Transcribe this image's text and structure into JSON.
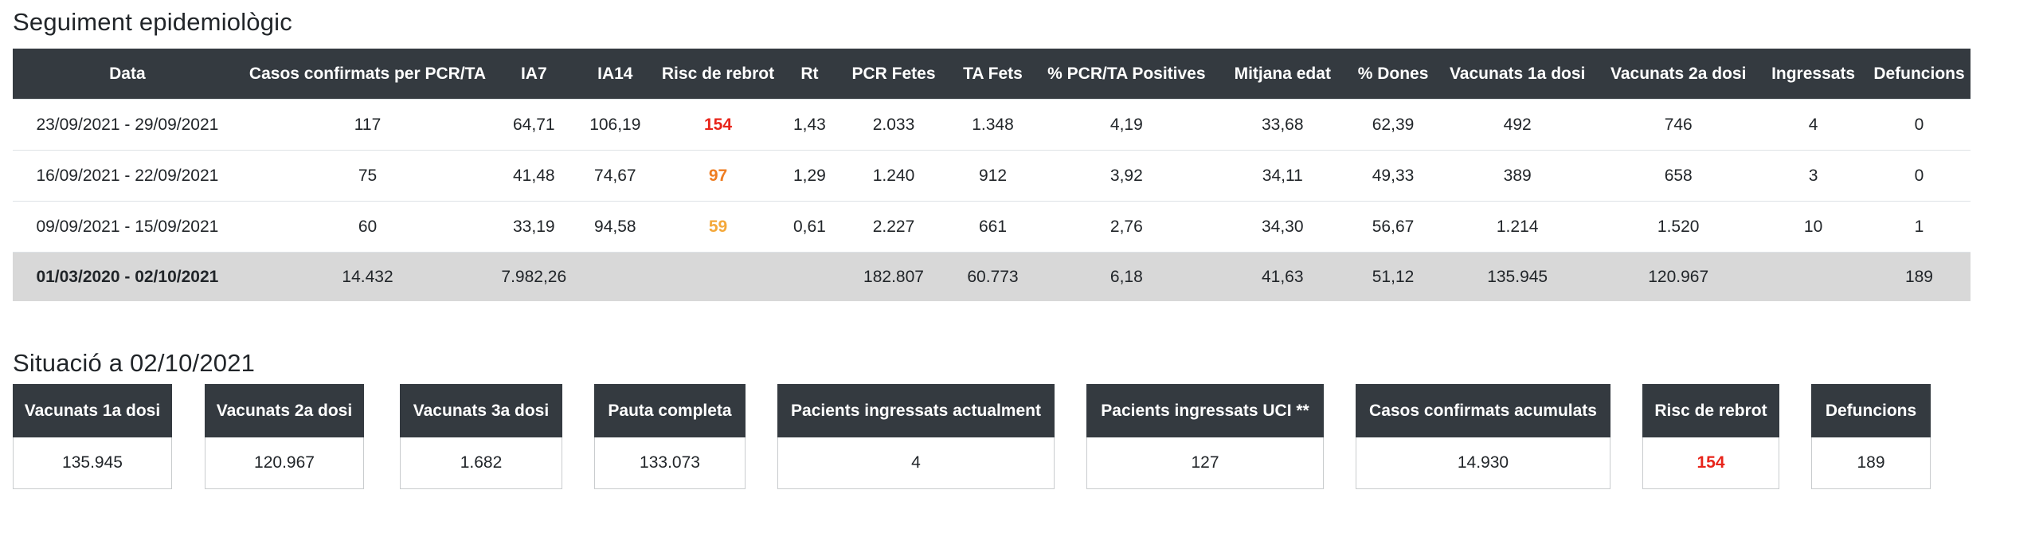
{
  "section1": {
    "title": "Seguiment epidemiològic"
  },
  "table": {
    "headers": [
      "Data",
      "Casos confirmats per PCR/TA",
      "IA7",
      "IA14",
      "Risc de rebrot",
      "Rt",
      "PCR Fetes",
      "TA Fets",
      "% PCR/TA Positives",
      "Mitjana edat",
      "% Dones",
      "Vacunats 1a dosi",
      "Vacunats 2a dosi",
      "Ingressats",
      "Defuncions"
    ],
    "rows": [
      [
        "23/09/2021 - 29/09/2021",
        "117",
        "64,71",
        "106,19",
        "154",
        "1,43",
        "2.033",
        "1.348",
        "4,19",
        "33,68",
        "62,39",
        "492",
        "746",
        "4",
        "0"
      ],
      [
        "16/09/2021 - 22/09/2021",
        "75",
        "41,48",
        "74,67",
        "97",
        "1,29",
        "1.240",
        "912",
        "3,92",
        "34,11",
        "49,33",
        "389",
        "658",
        "3",
        "0"
      ],
      [
        "09/09/2021 - 15/09/2021",
        "60",
        "33,19",
        "94,58",
        "59",
        "0,61",
        "2.227",
        "661",
        "2,76",
        "34,30",
        "56,67",
        "1.214",
        "1.520",
        "10",
        "1"
      ]
    ],
    "risk_colors": [
      "#e8251b",
      "#ef7d22",
      "#f4a83a"
    ],
    "total": [
      "01/03/2020 - 02/10/2021",
      "14.432",
      "7.982,26",
      "",
      "",
      "",
      "182.807",
      "60.773",
      "6,18",
      "41,63",
      "51,12",
      "135.945",
      "120.967",
      "",
      "189"
    ]
  },
  "section2": {
    "title": "Situació a 02/10/2021"
  },
  "cards": [
    {
      "label": "Vacunats 1a dosi",
      "value": "135.945"
    },
    {
      "label": "Vacunats 2a dosi",
      "value": "120.967"
    },
    {
      "label": "Vacunats 3a dosi",
      "value": "1.682"
    },
    {
      "label": "Pauta completa",
      "value": "133.073"
    },
    {
      "label": "Pacients ingressats actualment",
      "value": "4"
    },
    {
      "label": "Pacients ingressats UCI **",
      "value": "127"
    },
    {
      "label": "Casos confirmats acumulats",
      "value": "14.930"
    },
    {
      "label": "Risc de rebrot",
      "value": "154",
      "color": "#e8251b"
    },
    {
      "label": "Defuncions",
      "value": "189"
    }
  ],
  "colors": {
    "header_bg": "#343a40",
    "total_row_bg": "#d8d8d8"
  }
}
